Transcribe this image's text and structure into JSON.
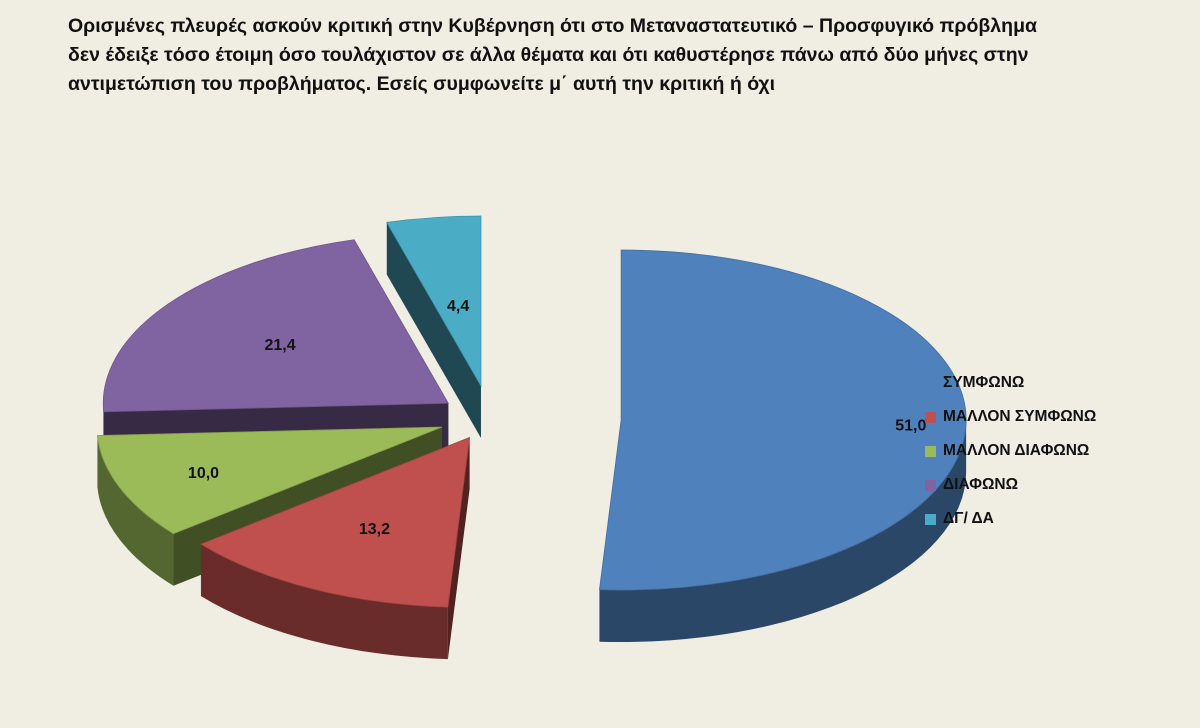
{
  "title_lines": [
    "Ορισμένες πλευρές ασκούν κριτική στην Κυβέρνηση ότι στο Μεταναστατευτικό – Προσφυγικό πρόβλημα",
    "δεν έδειξε τόσο έτοιμη όσο τουλάχιστον σε άλλα θέματα και ότι καθυστέρησε πάνω από δύο μήνες στην",
    "αντιμετώπιση του προβλήματος. Εσείς συμφωνείτε μ΄ αυτή την κριτική ή όχι"
  ],
  "chart_data": {
    "type": "pie",
    "style": "3d-exploded",
    "legend_position": "right",
    "slices": [
      {
        "label": "ΣΥΜΦΩΝΩ",
        "value": 51.0,
        "value_label": "51,0",
        "color": "#4f81bd"
      },
      {
        "label": "ΜΑΛΛΟΝ ΣΥΜΦΩΝΩ",
        "value": 13.2,
        "value_label": "13,2",
        "color": "#c0504d"
      },
      {
        "label": "ΜΑΛΛΟΝ ΔΙΑΦΩΝΩ",
        "value": 10.0,
        "value_label": "10,0",
        "color": "#9bbb59"
      },
      {
        "label": "ΔΙΑΦΩΝΩ",
        "value": 21.4,
        "value_label": "21,4",
        "color": "#8064a2"
      },
      {
        "label": "ΔΓ/ ΔΑ",
        "value": 4.4,
        "value_label": "4,4",
        "color": "#4bacc6"
      }
    ]
  }
}
